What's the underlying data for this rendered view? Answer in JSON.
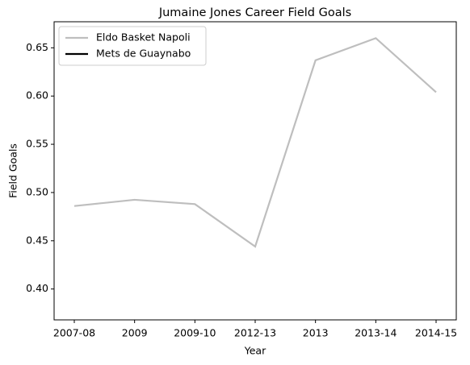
{
  "chart_data": {
    "type": "line",
    "title": "Jumaine Jones Career Field Goals",
    "x_label": "Year",
    "y_label": "Field Goals",
    "categories": [
      "2007-08",
      "2009",
      "2009-10",
      "2012-13",
      "2013",
      "2013-14",
      "2014-15"
    ],
    "series": [
      {
        "name": "Eldo Basket Napoli",
        "color": "#bebebe",
        "values": [
          0.486,
          0.4925,
          0.488,
          0.444,
          0.637,
          0.66,
          0.604
        ]
      },
      {
        "name": "Mets de Guaynabo",
        "color": "#000000",
        "values": [
          null,
          null,
          null,
          null,
          null,
          null,
          null
        ]
      }
    ],
    "ylim": [
      0.368,
      0.677
    ],
    "yticks": [
      {
        "value": 0.4,
        "label": "0.40"
      },
      0.45,
      {
        "value": 0.5,
        "label": "0.50"
      },
      0.55,
      {
        "value": 0.6,
        "label": "0.60"
      },
      0.65
    ],
    "legend": "upper left",
    "grid": false
  }
}
